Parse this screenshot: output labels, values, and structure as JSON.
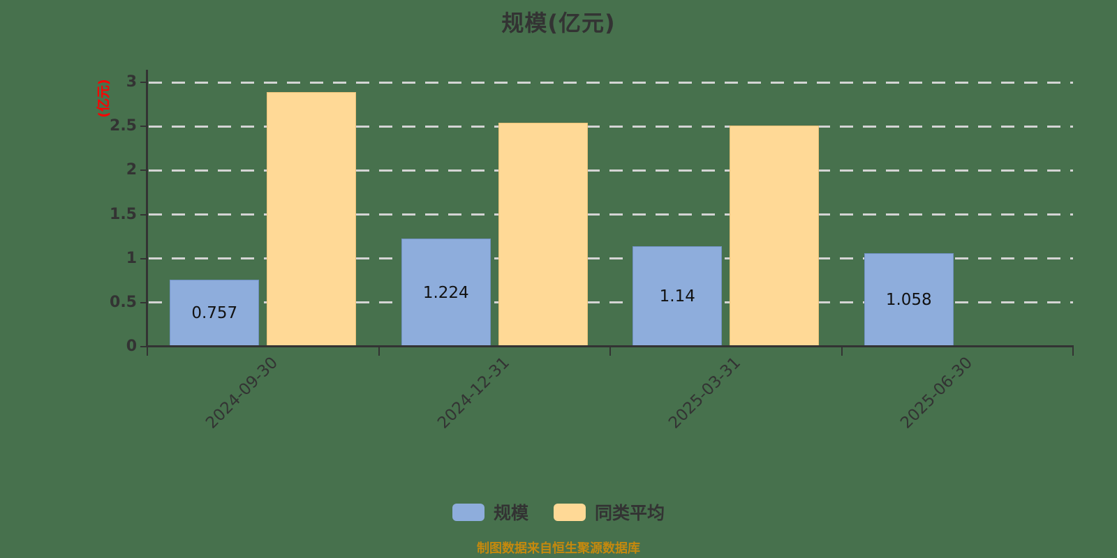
{
  "title": {
    "text": "规模(亿元)"
  },
  "y_axis": {
    "name": "(亿元)",
    "name_color": "#FF0000",
    "tick_labels": [
      "0",
      "0.5",
      "1",
      "1.5",
      "2",
      "2.5",
      "3"
    ],
    "tick_values": [
      0,
      0.5,
      1,
      1.5,
      2,
      2.5,
      3
    ],
    "max": 3
  },
  "chart_data": {
    "type": "bar",
    "title": "规模(亿元)",
    "categories": [
      "2024-09-30",
      "2024-12-31",
      "2025-03-31",
      "2025-06-30"
    ],
    "series": [
      {
        "key": "scale",
        "name": "规模",
        "color": "#8EADDC",
        "border_color": "#7191C2",
        "values": [
          0.757,
          1.224,
          1.14,
          1.058
        ],
        "data_labels": [
          "0.757",
          "1.224",
          "1.14",
          "1.058"
        ]
      },
      {
        "key": "peer-average",
        "name": "同类平均",
        "color": "#FFD996",
        "border_color": "#EDC279",
        "values": [
          2.89,
          2.54,
          2.51,
          null
        ],
        "data_labels": [
          null,
          null,
          null,
          null
        ]
      }
    ],
    "xlabel": "",
    "ylabel": "(亿元)",
    "ylim": [
      0,
      3
    ],
    "y_ticks": [
      0,
      0.5,
      1,
      1.5,
      2,
      2.5,
      3
    ],
    "grid": "horizontal dashed",
    "legend_position": "bottom",
    "x_label_rotation": 45,
    "background_color": "#47714D",
    "axis_color": "#333333",
    "gridline_color": "#D4D4D4"
  },
  "caption": {
    "text": "制图数据来自恒生聚源数据库"
  }
}
